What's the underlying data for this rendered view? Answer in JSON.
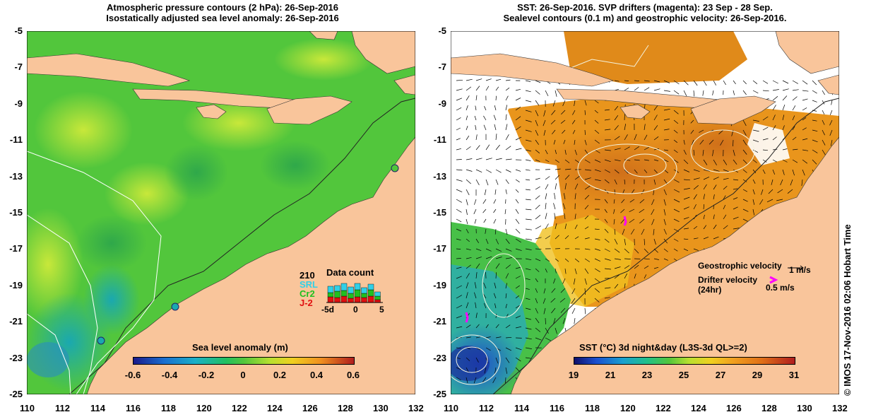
{
  "left": {
    "title_line1": "Atmospheric pressure contours (2 hPa): 26-Sep-2016",
    "title_line2": "Isostatically adjusted sea level anomaly: 26-Sep-2016",
    "colorbar_title": "Sea level anomaly (m)",
    "colorbar_ticks": [
      "-0.6",
      "-0.4",
      "-0.2",
      "0",
      "0.2",
      "0.4",
      "0.6"
    ],
    "count_legend": {
      "title": "Data count",
      "number": "210",
      "sources": [
        "SRL",
        "Cr2",
        "J-2"
      ],
      "axis_ticks": [
        "-5d",
        "0",
        "5"
      ]
    }
  },
  "right": {
    "title_line1": "SST: 26-Sep-2016. SVP drifters (magenta): 23 Sep - 28 Sep.",
    "title_line2": "Sealevel contours (0.1 m) and geostrophic velocity: 26-Sep-2016.",
    "colorbar_title": "SST (°C) 3d night&day (L3S-3d QL>=2)",
    "colorbar_ticks": [
      "19",
      "21",
      "23",
      "25",
      "27",
      "29",
      "31"
    ],
    "legend": {
      "geostrophic_label": "Geostrophic velocity",
      "geostrophic_value": "1 m/s",
      "drifter_label": "Drifter velocity",
      "drifter_sub": "(24hr)",
      "drifter_value": "0.5 m/s"
    }
  },
  "axes": {
    "y_ticks": [
      "-5",
      "-7",
      "-9",
      "-11",
      "-13",
      "-15",
      "-17",
      "-19",
      "-21",
      "-23",
      "-25"
    ],
    "x_ticks": [
      "110",
      "112",
      "114",
      "116",
      "118",
      "120",
      "122",
      "124",
      "126",
      "128",
      "130",
      "132"
    ]
  },
  "footer_text": "©  IMOS 17-Nov-2016 02:06 Hobart Time",
  "colors": {
    "land": "#f9c59b",
    "ocean_green": "#4fc83a",
    "sst_orange": "#e08a1a"
  }
}
